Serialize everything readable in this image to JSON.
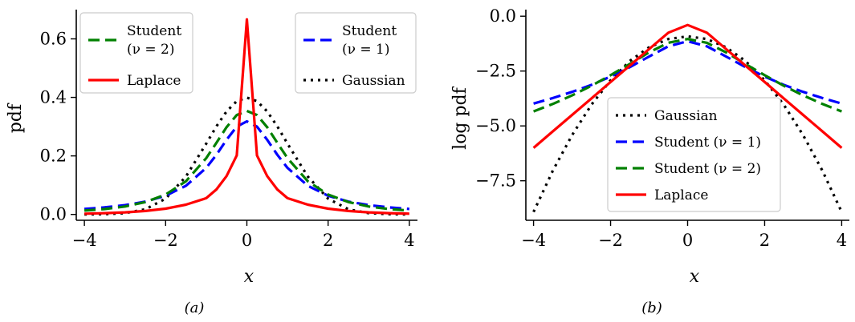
{
  "colors": {
    "gaussian": "#000000",
    "student1": "#0000ff",
    "student2": "#008000",
    "laplace": "#ff0000"
  },
  "chart_data": [
    {
      "type": "line",
      "caption": "(a)",
      "xlabel": "x",
      "ylabel": "pdf",
      "xlim": [
        -4.2,
        4.2
      ],
      "ylim": [
        -0.02,
        0.7
      ],
      "xticks": [
        -4,
        -2,
        0,
        2,
        4
      ],
      "xtick_labels": [
        "−4",
        "−2",
        "0",
        "2",
        "4"
      ],
      "yticks": [
        0.0,
        0.2,
        0.4,
        0.6
      ],
      "ytick_labels": [
        "0.0",
        "0.2",
        "0.4",
        "0.6"
      ],
      "x": [
        -4,
        -3.5,
        -3,
        -2.5,
        -2,
        -1.5,
        -1,
        -0.75,
        -0.5,
        -0.25,
        0,
        0.25,
        0.5,
        0.75,
        1,
        1.5,
        2,
        2.5,
        3,
        3.5,
        4
      ],
      "series": [
        {
          "key": "gaussian",
          "values": [
            0.0001,
            0.0009,
            0.0044,
            0.0175,
            0.054,
            0.1295,
            0.242,
            0.301,
            0.352,
            0.387,
            0.399,
            0.387,
            0.352,
            0.301,
            0.242,
            0.1295,
            0.054,
            0.0175,
            0.0044,
            0.0009,
            0.0001
          ]
        },
        {
          "key": "student1",
          "values": [
            0.0187,
            0.0241,
            0.0318,
            0.0439,
            0.0637,
            0.0979,
            0.159,
            0.204,
            0.255,
            0.3,
            0.318,
            0.3,
            0.255,
            0.204,
            0.159,
            0.0979,
            0.0637,
            0.0439,
            0.0318,
            0.0241,
            0.0187
          ]
        },
        {
          "key": "student2",
          "values": [
            0.0131,
            0.0184,
            0.0272,
            0.0422,
            0.068,
            0.1134,
            0.1925,
            0.2447,
            0.2981,
            0.3398,
            0.3536,
            0.3398,
            0.2981,
            0.2447,
            0.1925,
            0.1134,
            0.068,
            0.0422,
            0.0272,
            0.0184,
            0.0131
          ]
        },
        {
          "key": "laplace",
          "values": [
            0.0025,
            0.0043,
            0.0071,
            0.0118,
            0.0197,
            0.0333,
            0.0556,
            0.0854,
            0.131,
            0.2015,
            0.6667,
            0.2015,
            0.131,
            0.0854,
            0.0556,
            0.0333,
            0.0197,
            0.0118,
            0.0071,
            0.0043,
            0.0025
          ]
        }
      ],
      "legends": [
        {
          "position": "upper-left",
          "entries": [
            {
              "key": "student2",
              "label": "Student",
              "label2": "(ν = 2)"
            },
            {
              "key": "laplace",
              "label": "Laplace"
            }
          ]
        },
        {
          "position": "upper-right",
          "entries": [
            {
              "key": "student1",
              "label": "Student",
              "label2": "(ν = 1)"
            },
            {
              "key": "gaussian",
              "label": "Gaussian"
            }
          ]
        }
      ]
    },
    {
      "type": "line",
      "caption": "(b)",
      "xlabel": "x",
      "ylabel": "log pdf",
      "xlim": [
        -4.2,
        4.2
      ],
      "ylim": [
        -9.3,
        0.3
      ],
      "xticks": [
        -4,
        -2,
        0,
        2,
        4
      ],
      "xtick_labels": [
        "−4",
        "−2",
        "0",
        "2",
        "4"
      ],
      "yticks": [
        0.0,
        -2.5,
        -5.0,
        -7.5
      ],
      "ytick_labels": [
        "0.0",
        "−2.5",
        "−5.0",
        "−7.5"
      ],
      "x": [
        -4,
        -3.5,
        -3,
        -2.5,
        -2,
        -1.5,
        -1,
        -0.5,
        0,
        0.5,
        1,
        1.5,
        2,
        2.5,
        3,
        3.5,
        4
      ],
      "series": [
        {
          "key": "gaussian",
          "values": [
            -8.92,
            -7.04,
            -5.42,
            -4.04,
            -2.92,
            -2.04,
            -1.42,
            -1.04,
            -0.92,
            -1.04,
            -1.42,
            -2.04,
            -2.92,
            -4.04,
            -5.42,
            -7.04,
            -8.92
          ]
        },
        {
          "key": "student1",
          "values": [
            -3.98,
            -3.73,
            -3.45,
            -3.13,
            -2.75,
            -2.32,
            -1.84,
            -1.37,
            -1.14,
            -1.37,
            -1.84,
            -2.32,
            -2.75,
            -3.13,
            -3.45,
            -3.73,
            -3.98
          ]
        },
        {
          "key": "student2",
          "values": [
            -4.34,
            -4.0,
            -3.61,
            -3.17,
            -2.69,
            -2.18,
            -1.65,
            -1.21,
            -1.04,
            -1.21,
            -1.65,
            -2.18,
            -2.69,
            -3.17,
            -3.61,
            -4.0,
            -4.34
          ]
        },
        {
          "key": "laplace",
          "values": [
            -6.0,
            -5.25,
            -4.5,
            -3.75,
            -3.0,
            -2.25,
            -1.5,
            -0.75,
            -0.4,
            -0.75,
            -1.5,
            -2.25,
            -3.0,
            -3.75,
            -4.5,
            -5.25,
            -6.0
          ]
        }
      ],
      "legends": [
        {
          "position": "lower-center",
          "entries": [
            {
              "key": "gaussian",
              "label": "Gaussian"
            },
            {
              "key": "student1",
              "label": "Student (ν = 1)"
            },
            {
              "key": "student2",
              "label": "Student (ν = 2)"
            },
            {
              "key": "laplace",
              "label": "Laplace"
            }
          ]
        }
      ]
    }
  ]
}
